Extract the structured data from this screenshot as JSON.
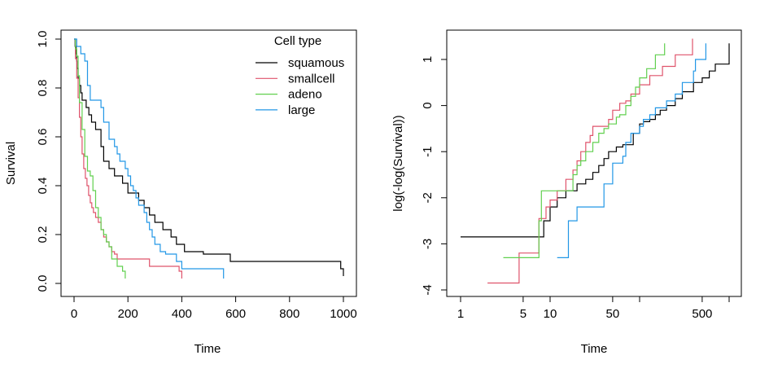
{
  "chart_data": [
    {
      "type": "line",
      "step": true,
      "title": "",
      "xlabel": "Time",
      "ylabel": "Survival",
      "xlim": [
        0,
        1000
      ],
      "ylim": [
        0,
        1
      ],
      "xticks": [
        0,
        200,
        400,
        600,
        800,
        1000
      ],
      "yticks": [
        0,
        0.2,
        0.4,
        0.6,
        0.8,
        1
      ],
      "xtick_labels": [
        "0",
        "200",
        "400",
        "600",
        "800",
        "1000"
      ],
      "ytick_labels": [
        "0.0",
        "0.2",
        "0.4",
        "0.6",
        "0.8",
        "1.0"
      ],
      "grid": false,
      "legend": {
        "title": "Cell type",
        "position": "top-right"
      },
      "series": [
        {
          "name": "squamous",
          "color": "#000000",
          "x": [
            0,
            4,
            8,
            10,
            11,
            15,
            20,
            25,
            30,
            45,
            55,
            65,
            80,
            100,
            110,
            130,
            150,
            180,
            200,
            240,
            260,
            280,
            300,
            330,
            360,
            380,
            410,
            480,
            580,
            990,
            1000
          ],
          "y": [
            1.0,
            0.97,
            0.94,
            0.91,
            0.88,
            0.84,
            0.81,
            0.78,
            0.75,
            0.72,
            0.69,
            0.66,
            0.63,
            0.56,
            0.5,
            0.47,
            0.44,
            0.41,
            0.37,
            0.34,
            0.31,
            0.28,
            0.25,
            0.22,
            0.19,
            0.16,
            0.13,
            0.12,
            0.09,
            0.06,
            0.03
          ]
        },
        {
          "name": "smallcell",
          "color": "#df536b",
          "x": [
            0,
            5,
            10,
            15,
            20,
            25,
            30,
            36,
            42,
            48,
            54,
            60,
            66,
            72,
            80,
            90,
            100,
            110,
            120,
            130,
            140,
            150,
            160,
            200,
            230,
            280,
            340,
            390,
            400
          ],
          "y": [
            1.0,
            0.92,
            0.84,
            0.76,
            0.68,
            0.6,
            0.53,
            0.47,
            0.43,
            0.4,
            0.36,
            0.33,
            0.31,
            0.29,
            0.27,
            0.25,
            0.22,
            0.19,
            0.17,
            0.15,
            0.13,
            0.12,
            0.1,
            0.1,
            0.1,
            0.07,
            0.07,
            0.05,
            0.02
          ]
        },
        {
          "name": "adeno",
          "color": "#61d04f",
          "x": [
            0,
            5,
            10,
            15,
            20,
            30,
            40,
            50,
            60,
            70,
            80,
            90,
            100,
            110,
            120,
            130,
            140,
            160,
            180,
            190
          ],
          "y": [
            1.0,
            0.96,
            0.93,
            0.85,
            0.74,
            0.63,
            0.52,
            0.46,
            0.44,
            0.38,
            0.31,
            0.27,
            0.22,
            0.2,
            0.17,
            0.15,
            0.1,
            0.07,
            0.05,
            0.02
          ]
        },
        {
          "name": "large",
          "color": "#2297e6",
          "x": [
            0,
            10,
            25,
            40,
            50,
            60,
            100,
            110,
            130,
            150,
            160,
            170,
            190,
            200,
            210,
            220,
            230,
            240,
            260,
            270,
            280,
            290,
            300,
            320,
            340,
            360,
            380,
            400,
            410,
            430,
            550,
            555
          ],
          "y": [
            1.0,
            0.97,
            0.94,
            0.91,
            0.81,
            0.75,
            0.72,
            0.66,
            0.59,
            0.56,
            0.53,
            0.5,
            0.47,
            0.44,
            0.4,
            0.38,
            0.35,
            0.32,
            0.29,
            0.25,
            0.22,
            0.19,
            0.16,
            0.13,
            0.12,
            0.12,
            0.09,
            0.06,
            0.06,
            0.06,
            0.06,
            0.02
          ]
        }
      ]
    },
    {
      "type": "line",
      "step": true,
      "title": "",
      "xlabel": "Time",
      "ylabel": "log(-log(Survival))",
      "xscale": "log",
      "xlim": [
        1,
        999
      ],
      "ylim": [
        -4,
        1.4
      ],
      "xticks": [
        1,
        5,
        10,
        50,
        100,
        500,
        1000
      ],
      "xtick_labels": [
        "1",
        "5",
        "10",
        "50",
        "",
        "500",
        ""
      ],
      "yticks": [
        -4,
        -3,
        -2,
        -1,
        0,
        1
      ],
      "ytick_labels": [
        "-4",
        "-3",
        "-2",
        "-1",
        "0",
        "1"
      ],
      "grid": false,
      "series": [
        {
          "name": "squamous",
          "color": "#000000",
          "x": [
            1,
            8,
            8.5,
            10,
            12,
            15,
            20,
            22,
            25,
            30,
            35,
            40,
            45,
            55,
            65,
            70,
            85,
            100,
            110,
            130,
            150,
            170,
            200,
            250,
            300,
            400,
            500,
            600,
            700,
            999
          ],
          "y": [
            -2.85,
            -2.85,
            -2.5,
            -2.2,
            -2.0,
            -1.85,
            -1.7,
            -1.7,
            -1.6,
            -1.45,
            -1.3,
            -1.15,
            -1.0,
            -0.9,
            -0.85,
            -0.85,
            -0.6,
            -0.4,
            -0.35,
            -0.3,
            -0.2,
            -0.1,
            0.0,
            0.15,
            0.3,
            0.5,
            0.6,
            0.75,
            0.9,
            1.35
          ]
        },
        {
          "name": "smallcell",
          "color": "#df536b",
          "x": [
            2,
            4,
            4.5,
            7,
            7.5,
            9,
            10,
            12,
            15,
            18,
            20,
            22,
            25,
            28,
            30,
            40,
            45,
            50,
            60,
            70,
            80,
            100,
            130,
            180,
            250,
            390
          ],
          "y": [
            -3.85,
            -3.85,
            -3.2,
            -3.2,
            -2.45,
            -2.2,
            -2.05,
            -1.85,
            -1.6,
            -1.4,
            -1.2,
            -1.0,
            -0.8,
            -0.65,
            -0.45,
            -0.45,
            -0.3,
            -0.1,
            0.05,
            0.1,
            0.25,
            0.45,
            0.65,
            0.85,
            1.1,
            1.45
          ]
        },
        {
          "name": "adeno",
          "color": "#61d04f",
          "x": [
            3,
            7,
            7.5,
            8,
            15,
            18,
            20,
            22,
            25,
            30,
            35,
            40,
            45,
            55,
            60,
            70,
            80,
            90,
            100,
            120,
            150,
            190
          ],
          "y": [
            -3.3,
            -3.3,
            -2.5,
            -1.85,
            -1.85,
            -1.5,
            -1.3,
            -1.2,
            -1.0,
            -0.8,
            -0.6,
            -0.5,
            -0.4,
            -0.25,
            -0.2,
            0.0,
            0.2,
            0.4,
            0.6,
            0.8,
            1.1,
            1.35
          ]
        },
        {
          "name": "large",
          "color": "#2297e6",
          "x": [
            12,
            15,
            16,
            20,
            35,
            40,
            50,
            65,
            70,
            80,
            100,
            110,
            130,
            150,
            200,
            250,
            300,
            400,
            420,
            550
          ],
          "y": [
            -3.3,
            -3.3,
            -2.5,
            -2.2,
            -2.2,
            -1.7,
            -1.25,
            -1.1,
            -0.8,
            -0.6,
            -0.45,
            -0.3,
            -0.2,
            -0.05,
            0.1,
            0.25,
            0.5,
            0.75,
            1.0,
            1.35
          ]
        }
      ]
    }
  ]
}
